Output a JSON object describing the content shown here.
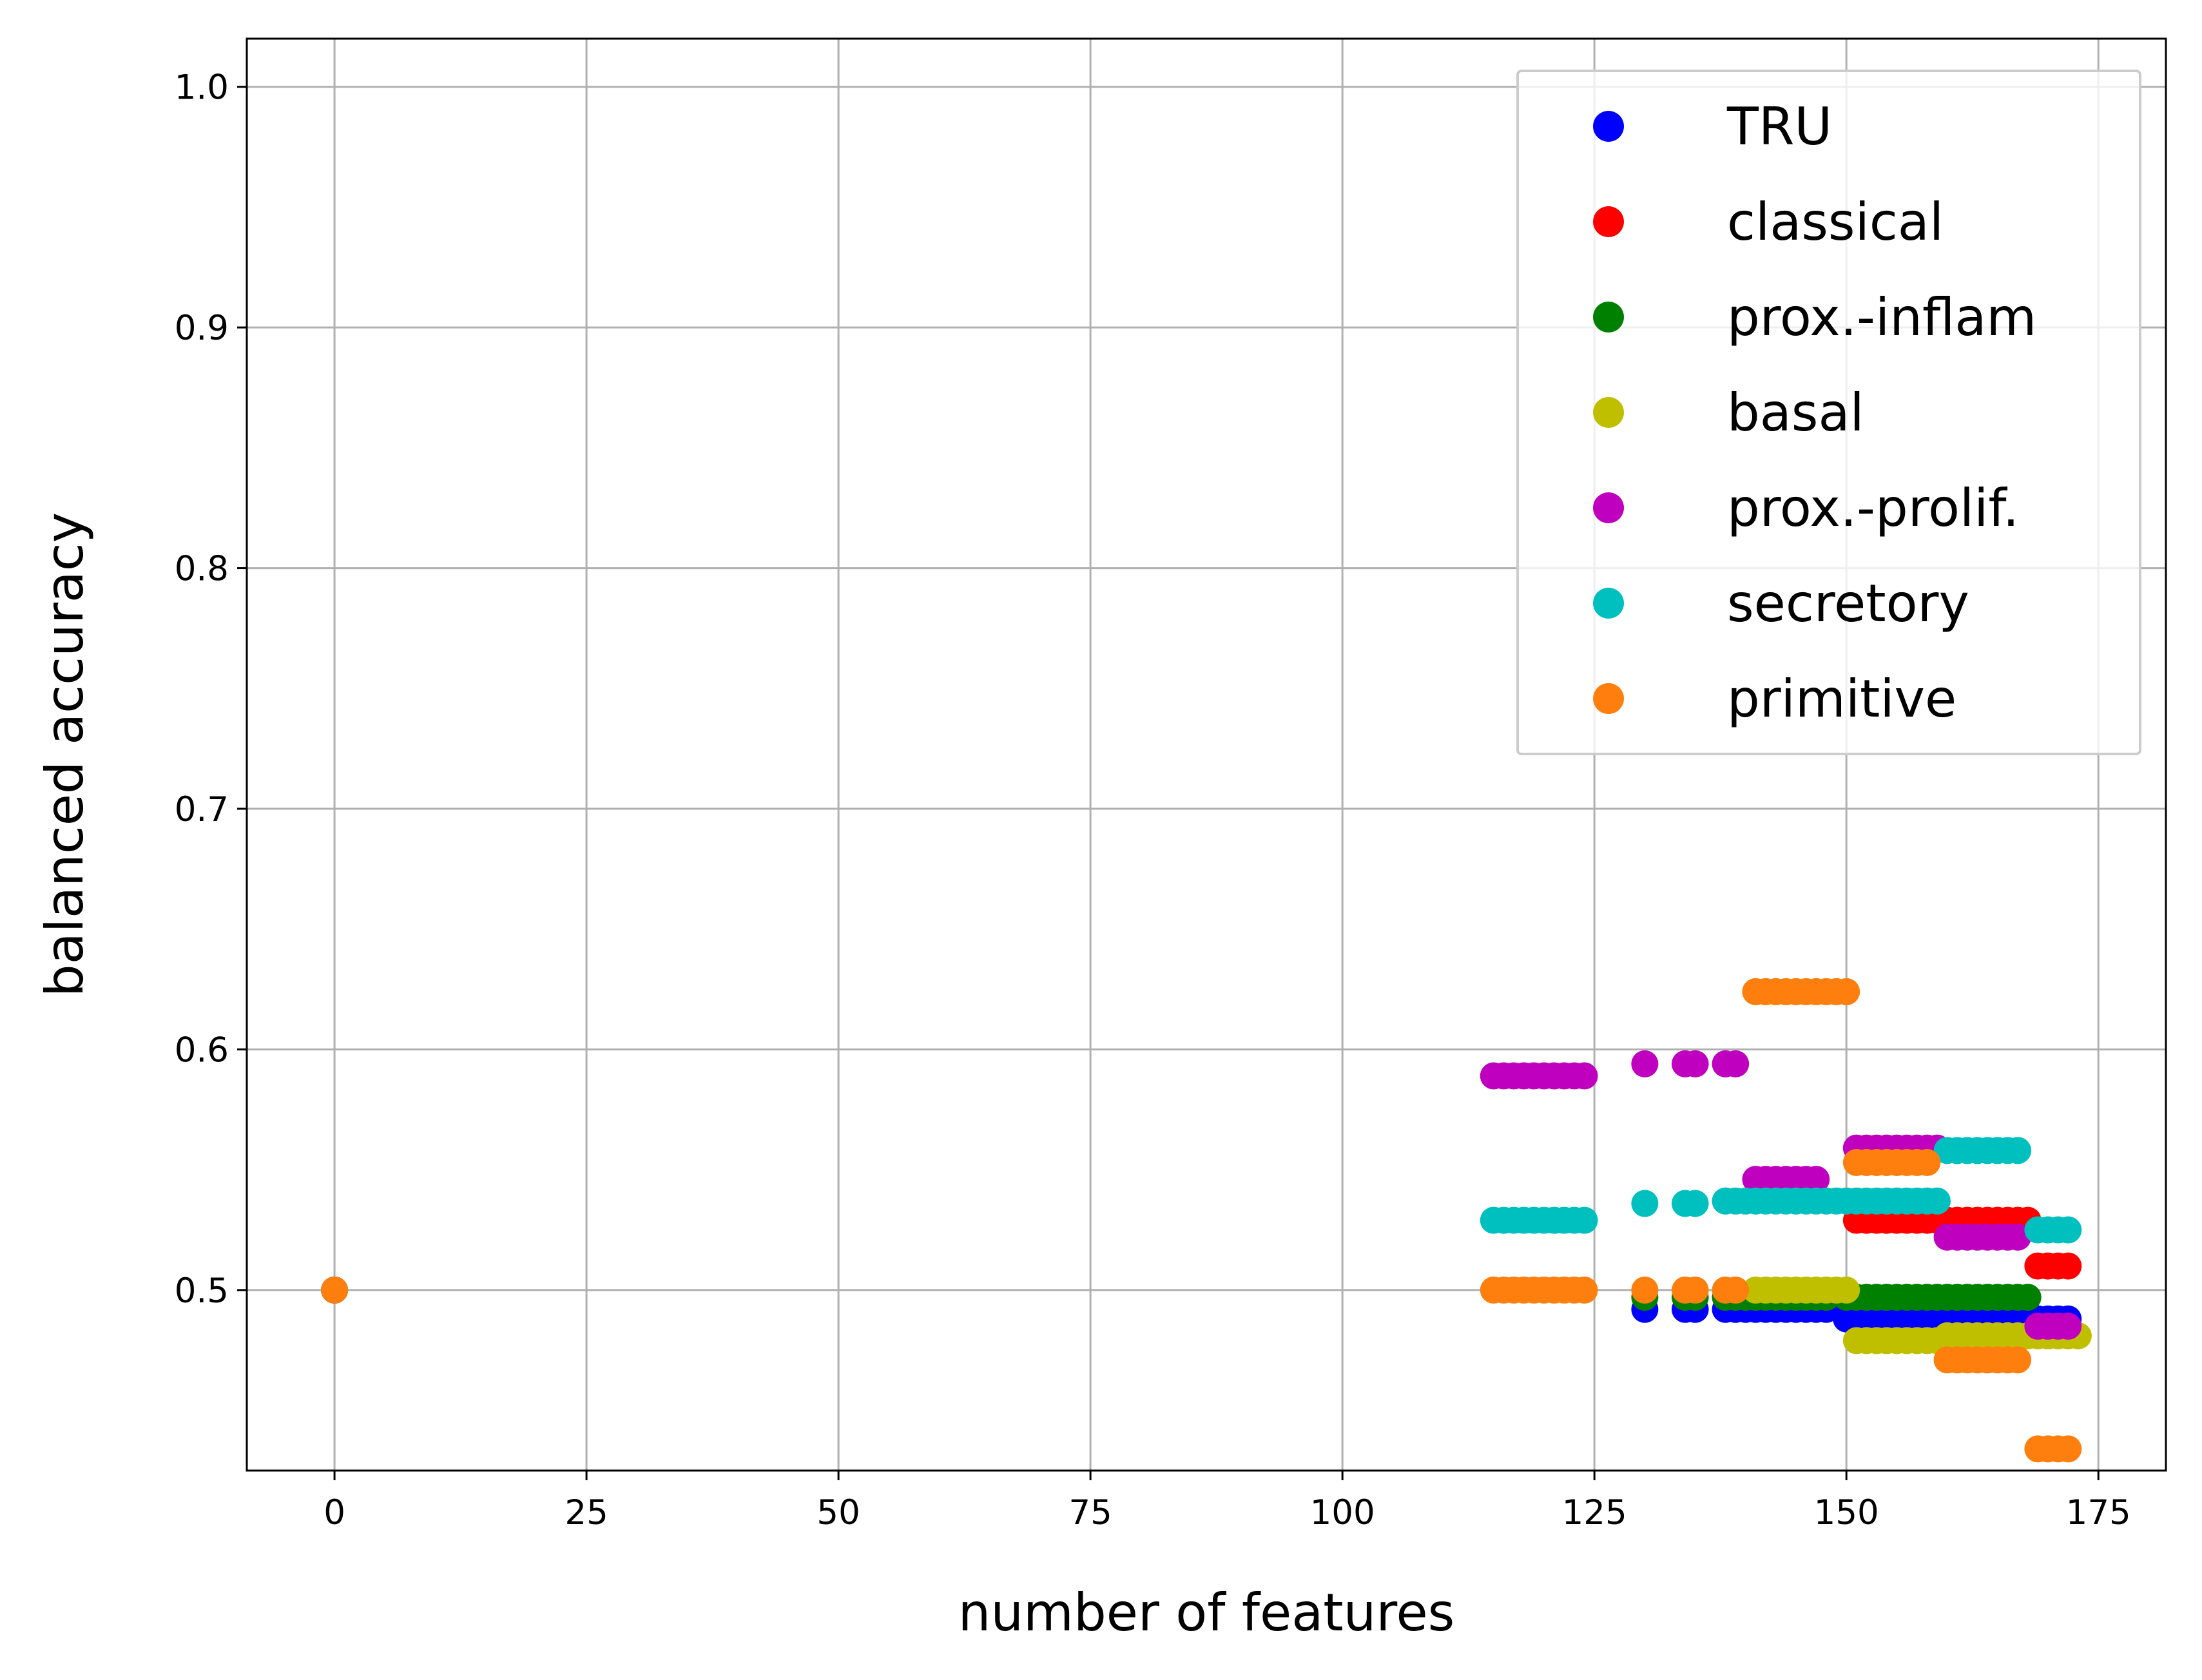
{
  "chart_data": {
    "type": "scatter",
    "xlabel": "number of features",
    "ylabel": "balanced accuracy",
    "xlim": [
      -8.7,
      181.7
    ],
    "ylim": [
      0.425,
      1.02
    ],
    "grid": true,
    "legend_position": "top-right",
    "x_ticks": [
      0,
      25,
      50,
      75,
      100,
      125,
      150,
      175
    ],
    "y_ticks": [
      0.5,
      0.6,
      0.7,
      0.8,
      0.9,
      1.0
    ],
    "series": [
      {
        "name": "TRU",
        "color": "#0000ff",
        "segments": [
          {
            "x_from": 130,
            "x_to": 130,
            "y": 0.492
          },
          {
            "x_from": 134,
            "x_to": 135,
            "y": 0.492
          },
          {
            "x_from": 138,
            "x_to": 148,
            "y": 0.492
          },
          {
            "x_from": 150,
            "x_to": 172,
            "y": 0.488
          },
          {
            "x_from": 0,
            "x_to": 0,
            "y": 0.5
          }
        ]
      },
      {
        "name": "classical",
        "color": "#ff0000",
        "segments": [
          {
            "x_from": 151,
            "x_to": 168,
            "y": 0.529
          },
          {
            "x_from": 169,
            "x_to": 172,
            "y": 0.51
          },
          {
            "x_from": 0,
            "x_to": 0,
            "y": 0.5
          }
        ]
      },
      {
        "name": "prox.-inflam",
        "color": "#008000",
        "segments": [
          {
            "x_from": 130,
            "x_to": 130,
            "y": 0.497
          },
          {
            "x_from": 134,
            "x_to": 135,
            "y": 0.497
          },
          {
            "x_from": 138,
            "x_to": 148,
            "y": 0.497
          },
          {
            "x_from": 150,
            "x_to": 168,
            "y": 0.497
          },
          {
            "x_from": 0,
            "x_to": 0,
            "y": 0.5
          }
        ]
      },
      {
        "name": "basal",
        "color": "#bfbf00",
        "segments": [
          {
            "x_from": 141,
            "x_to": 150,
            "y": 0.5
          },
          {
            "x_from": 151,
            "x_to": 159,
            "y": 0.479
          },
          {
            "x_from": 160,
            "x_to": 173,
            "y": 0.481
          },
          {
            "x_from": 0,
            "x_to": 0,
            "y": 0.5
          }
        ]
      },
      {
        "name": "prox.-prolif.",
        "color": "#bf00bf",
        "segments": [
          {
            "x_from": 115,
            "x_to": 124,
            "y": 0.589
          },
          {
            "x_from": 130,
            "x_to": 130,
            "y": 0.594
          },
          {
            "x_from": 134,
            "x_to": 135,
            "y": 0.594
          },
          {
            "x_from": 138,
            "x_to": 139,
            "y": 0.594
          },
          {
            "x_from": 141,
            "x_to": 147,
            "y": 0.546
          },
          {
            "x_from": 151,
            "x_to": 159,
            "y": 0.559
          },
          {
            "x_from": 160,
            "x_to": 167,
            "y": 0.522
          },
          {
            "x_from": 169,
            "x_to": 172,
            "y": 0.485
          },
          {
            "x_from": 0,
            "x_to": 0,
            "y": 0.5
          }
        ]
      },
      {
        "name": "secretory",
        "color": "#00bfbf",
        "segments": [
          {
            "x_from": 115,
            "x_to": 124,
            "y": 0.529
          },
          {
            "x_from": 130,
            "x_to": 130,
            "y": 0.536
          },
          {
            "x_from": 134,
            "x_to": 135,
            "y": 0.536
          },
          {
            "x_from": 138,
            "x_to": 159,
            "y": 0.537
          },
          {
            "x_from": 160,
            "x_to": 167,
            "y": 0.558
          },
          {
            "x_from": 169,
            "x_to": 172,
            "y": 0.525
          },
          {
            "x_from": 0,
            "x_to": 0,
            "y": 0.5
          }
        ]
      },
      {
        "name": "primitive",
        "color": "#ff7f0e",
        "segments": [
          {
            "x_from": 0,
            "x_to": 0,
            "y": 0.5
          },
          {
            "x_from": 115,
            "x_to": 124,
            "y": 0.5
          },
          {
            "x_from": 130,
            "x_to": 130,
            "y": 0.5
          },
          {
            "x_from": 134,
            "x_to": 135,
            "y": 0.5
          },
          {
            "x_from": 138,
            "x_to": 139,
            "y": 0.5
          },
          {
            "x_from": 141,
            "x_to": 150,
            "y": 0.624
          },
          {
            "x_from": 151,
            "x_to": 158,
            "y": 0.553
          },
          {
            "x_from": 160,
            "x_to": 167,
            "y": 0.471
          },
          {
            "x_from": 169,
            "x_to": 172,
            "y": 0.434
          }
        ]
      }
    ]
  }
}
